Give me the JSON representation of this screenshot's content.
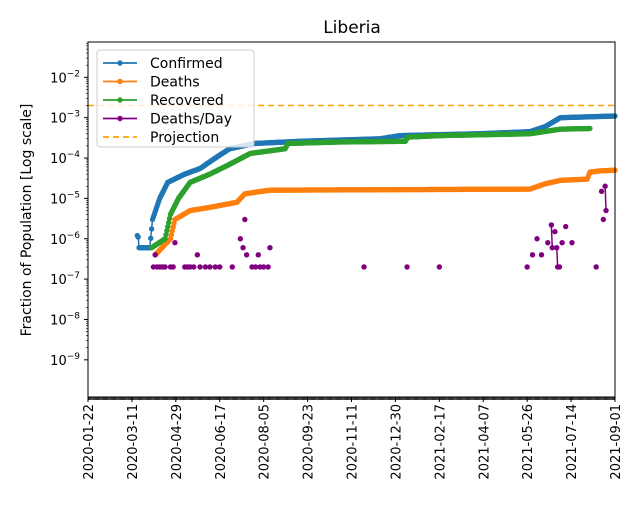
{
  "chart_data": {
    "type": "line",
    "title": "Liberia",
    "xlabel": "",
    "ylabel": "Fraction of Population [Log scale]",
    "yscale": "log",
    "ylim": [
      1.2e-10,
      0.075
    ],
    "x_start": "2020-01-22",
    "x_total_days": 588,
    "x_tick_labels": [
      "2020-01-22",
      "2020-03-11",
      "2020-04-29",
      "2020-06-17",
      "2020-08-05",
      "2020-09-23",
      "2020-11-11",
      "2020-12-30",
      "2021-02-17",
      "2021-04-07",
      "2021-05-26",
      "2021-07-14",
      "2021-09-01"
    ],
    "y_ticks": [
      {
        "exp": "-2",
        "value": 0.01
      },
      {
        "exp": "-3",
        "value": 0.001
      },
      {
        "exp": "-4",
        "value": 0.0001
      },
      {
        "exp": "-5",
        "value": 1e-05
      },
      {
        "exp": "-6",
        "value": 1e-06
      },
      {
        "exp": "-7",
        "value": 1e-07
      },
      {
        "exp": "-8",
        "value": 1e-08
      },
      {
        "exp": "-9",
        "value": 1e-09
      }
    ],
    "legend_position": "top-left",
    "projection": {
      "name": "Projection",
      "value": 0.002,
      "color": "#ffa500"
    },
    "series": [
      {
        "name": "Confirmed",
        "color": "#1f77b4",
        "day_value_points": [
          [
            55,
            1.2e-06
          ],
          [
            56,
            1.1e-06
          ],
          [
            57,
            6e-07
          ],
          [
            69,
            6e-07
          ],
          [
            72,
            3e-06
          ],
          [
            80,
            1e-05
          ],
          [
            89,
            2.5e-05
          ],
          [
            108,
            4e-05
          ],
          [
            125,
            5.5e-05
          ],
          [
            142,
            0.0001
          ],
          [
            158,
            0.00017
          ],
          [
            186,
            0.00023
          ],
          [
            237,
            0.00026
          ],
          [
            326,
            0.0003
          ],
          [
            348,
            0.00036
          ],
          [
            437,
            0.0004
          ],
          [
            493,
            0.00045
          ],
          [
            510,
            0.0006
          ],
          [
            527,
            0.001
          ],
          [
            588,
            0.0011
          ]
        ]
      },
      {
        "name": "Deaths",
        "color": "#ff7f0e",
        "day_value_points": [
          [
            75,
            4e-07
          ],
          [
            92,
            1e-06
          ],
          [
            97,
            3e-06
          ],
          [
            114,
            5e-06
          ],
          [
            136,
            6e-06
          ],
          [
            166,
            8e-06
          ],
          [
            175,
            1.3e-05
          ],
          [
            203,
            1.6e-05
          ],
          [
            493,
            1.7e-05
          ],
          [
            510,
            2.3e-05
          ],
          [
            527,
            2.8e-05
          ],
          [
            557,
            3e-05
          ],
          [
            560,
            4.5e-05
          ],
          [
            571,
            4.8e-05
          ],
          [
            588,
            5e-05
          ]
        ]
      },
      {
        "name": "Recovered",
        "color": "#2ca02c",
        "day_value_points": [
          [
            71,
            6e-07
          ],
          [
            86,
            1e-06
          ],
          [
            92,
            4e-06
          ],
          [
            101,
            1e-05
          ],
          [
            114,
            2.5e-05
          ],
          [
            136,
            4e-05
          ],
          [
            158,
            7e-05
          ],
          [
            181,
            0.00013
          ],
          [
            220,
            0.00017
          ],
          [
            223,
            0.00023
          ],
          [
            281,
            0.00025
          ],
          [
            354,
            0.00026
          ],
          [
            357,
            0.00033
          ],
          [
            393,
            0.00036
          ],
          [
            493,
            0.0004
          ],
          [
            527,
            0.00052
          ],
          [
            560,
            0.00054
          ]
        ]
      },
      {
        "name": "Deaths/Day",
        "color": "#800080",
        "points_only": true,
        "day_value_points": [
          [
            73,
            2e-07
          ],
          [
            75,
            4e-07
          ],
          [
            77,
            2e-07
          ],
          [
            80,
            2e-07
          ],
          [
            83,
            2e-07
          ],
          [
            86,
            2e-07
          ],
          [
            92,
            2e-07
          ],
          [
            95,
            2e-07
          ],
          [
            97,
            8e-07
          ],
          [
            108,
            2e-07
          ],
          [
            111,
            2e-07
          ],
          [
            114,
            2e-07
          ],
          [
            118,
            2e-07
          ],
          [
            122,
            4e-07
          ],
          [
            125,
            2e-07
          ],
          [
            131,
            2e-07
          ],
          [
            136,
            2e-07
          ],
          [
            142,
            2e-07
          ],
          [
            147,
            2e-07
          ],
          [
            161,
            2e-07
          ],
          [
            170,
            1e-06
          ],
          [
            173,
            6e-07
          ],
          [
            175,
            3e-06
          ],
          [
            177,
            4e-07
          ],
          [
            183,
            2e-07
          ],
          [
            187,
            2e-07
          ],
          [
            190,
            4e-07
          ],
          [
            192,
            2e-07
          ],
          [
            196,
            2e-07
          ],
          [
            201,
            2e-07
          ],
          [
            203,
            6e-07
          ],
          [
            308,
            2e-07
          ],
          [
            356,
            2e-07
          ],
          [
            392,
            2e-07
          ],
          [
            490,
            2e-07
          ],
          [
            496,
            4e-07
          ],
          [
            501,
            1e-06
          ],
          [
            506,
            4e-07
          ],
          [
            513,
            8e-07
          ],
          [
            517,
            2.2e-06
          ],
          [
            518,
            6e-07
          ],
          [
            521,
            1.5e-06
          ],
          [
            523,
            6e-07
          ],
          [
            524,
            2e-07
          ],
          [
            526,
            2e-07
          ],
          [
            529,
            8e-07
          ],
          [
            533,
            2e-06
          ],
          [
            540,
            8e-07
          ],
          [
            567,
            2e-07
          ],
          [
            573,
            1.5e-05
          ],
          [
            575,
            3e-06
          ],
          [
            577,
            2e-05
          ],
          [
            578,
            5e-06
          ]
        ]
      }
    ]
  }
}
